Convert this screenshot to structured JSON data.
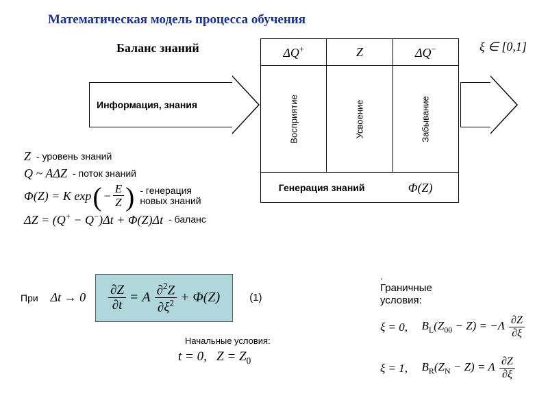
{
  "colors": {
    "title_color": "#1c2f8a",
    "highlight_bg": "#b0d8dc",
    "highlight_border": "#5a5a5a",
    "text": "#000000",
    "bg": "#ffffff"
  },
  "title": "Математическая модель процесса обучения",
  "subtitle": "Баланс знаний",
  "xi_range": "ξ ∈ [0,1]",
  "diagram": {
    "headers": {
      "q_plus": "ΔQ⁺",
      "z": "Z",
      "q_minus": "ΔQ⁻"
    },
    "columns": {
      "perception": "Восприятие",
      "assimilation": "Усвоение",
      "forgetting": "Забывание"
    },
    "gen_label": "Генерация знаний",
    "gen_phi": "Φ(Z)"
  },
  "arrow_in_label": "Информация, знания",
  "defs": {
    "z_sym": "Z",
    "z_txt": "- уровень знаний",
    "q_sym": "Q ~ AΔZ",
    "q_txt": "- поток знаний",
    "phi_sym_pre": "Φ(Z) = K exp",
    "phi_frac_num": "E",
    "phi_frac_den": "Z",
    "phi_txt1": "генерация",
    "phi_txt2": "новых знаний",
    "bal_sym": "ΔZ = (Q⁺ − Q⁻)Δt + Φ(Z)Δt",
    "bal_txt": "- баланс"
  },
  "limit": {
    "label": "При",
    "expr": "Δt → 0"
  },
  "main_eq": {
    "lhs_num": "∂Z",
    "lhs_den": "∂t",
    "eq": "=",
    "A": "A",
    "rhs_num": "∂²Z",
    "rhs_den": "∂ξ²",
    "plus": "+",
    "phi": "Φ(Z)",
    "num": "(1)"
  },
  "boundary": {
    "title1": "Граничные",
    "title2": "условия:",
    "bc1_xi": "ξ = 0,",
    "bc1_lhs": "B_L(Z₀₀ − Z) = −Λ",
    "bc2_xi": "ξ = 1,",
    "bc2_lhs": "B_R(Z_N − Z) = Λ",
    "frac_num": "∂Z",
    "frac_den": "∂ξ"
  },
  "initial": {
    "title": "Начальные условия:",
    "eq": "t = 0,    Z = Z₀"
  }
}
